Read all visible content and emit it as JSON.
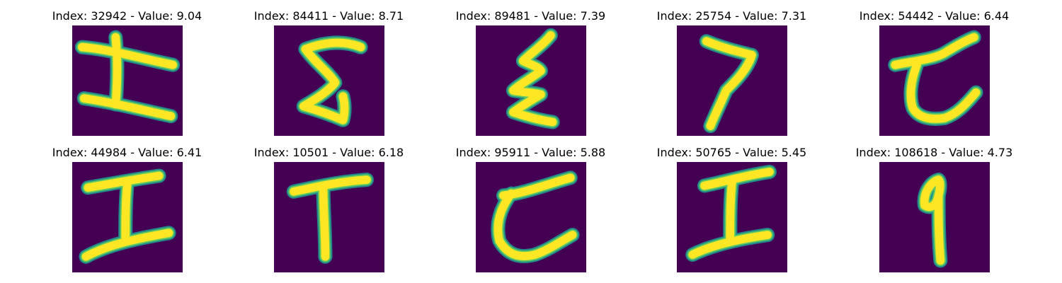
{
  "colors": {
    "background": "#ffffff",
    "image_background": "#440154",
    "stroke_outer": "#21918c",
    "stroke_mid": "#5ec962",
    "stroke_core": "#fde725"
  },
  "grid": {
    "rows": 2,
    "columns": 5
  },
  "items": [
    {
      "title": "Index: 32942 - Value: 9.04",
      "index": 32942,
      "value": 9.04,
      "glyph": "two-horizontal-bars-with-vertical-stroke"
    },
    {
      "title": "Index: 84411 - Value: 8.71",
      "index": 84411,
      "value": 8.71,
      "glyph": "s-shaped-stroke"
    },
    {
      "title": "Index: 89481 - Value: 7.39",
      "index": 89481,
      "value": 7.39,
      "glyph": "zigzag-stroke"
    },
    {
      "title": "Index: 25754 - Value: 7.31",
      "index": 25754,
      "value": 7.31,
      "glyph": "seven-shaped-stroke"
    },
    {
      "title": "Index: 54442 - Value: 6.44",
      "index": 54442,
      "value": 6.44,
      "glyph": "curved-hook-stroke"
    },
    {
      "title": "Index: 44984 - Value: 6.41",
      "index": 44984,
      "value": 6.41,
      "glyph": "i-shaped-stroke"
    },
    {
      "title": "Index: 10501 - Value: 6.18",
      "index": 10501,
      "value": 6.18,
      "glyph": "t-shaped-stroke"
    },
    {
      "title": "Index: 95911 - Value: 5.88",
      "index": 95911,
      "value": 5.88,
      "glyph": "curved-hook-stroke"
    },
    {
      "title": "Index: 50765 - Value: 5.45",
      "index": 50765,
      "value": 5.45,
      "glyph": "i-shaped-stroke"
    },
    {
      "title": "Index: 108618 - Value: 4.73",
      "index": 108618,
      "value": 4.73,
      "glyph": "nine-shaped-stroke"
    }
  ]
}
